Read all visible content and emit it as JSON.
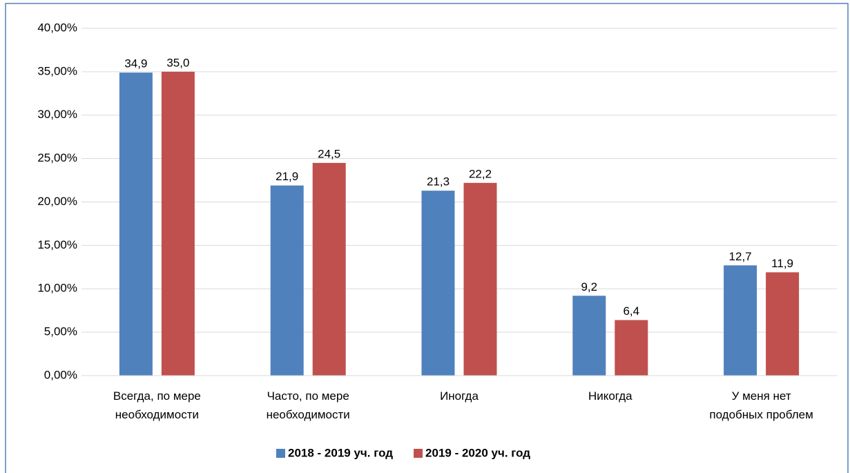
{
  "chart_data": {
    "type": "bar",
    "categories": [
      "Всегда, по мере\nнеобходимости",
      "Часто, по мере\nнеобходимости",
      "Иногда",
      "Никогда",
      "У меня нет\nподобных проблем"
    ],
    "series": [
      {
        "name": "2018 - 2019 уч. год",
        "color": "#4f81bd",
        "values": [
          34.9,
          21.9,
          21.3,
          9.2,
          12.7
        ],
        "value_labels": [
          "34,9",
          "21,9",
          "21,3",
          "9,2",
          "12,7"
        ]
      },
      {
        "name": "2019 - 2020 уч. год",
        "color": "#c0504d",
        "values": [
          35.0,
          24.5,
          22.2,
          6.4,
          11.9
        ],
        "value_labels": [
          "35,0",
          "24,5",
          "22,2",
          "6,4",
          "11,9"
        ]
      }
    ],
    "ylim": [
      0,
      40
    ],
    "yticks": [
      {
        "value": 0,
        "label": "0,00%"
      },
      {
        "value": 5,
        "label": "5,00%"
      },
      {
        "value": 10,
        "label": "10,00%"
      },
      {
        "value": 15,
        "label": "15,00%"
      },
      {
        "value": 20,
        "label": "20,00%"
      },
      {
        "value": 25,
        "label": "25,00%"
      },
      {
        "value": 30,
        "label": "30,00%"
      },
      {
        "value": 35,
        "label": "35,00%"
      },
      {
        "value": 40,
        "label": "40,00%"
      }
    ],
    "grid": true,
    "legend": "bottom"
  }
}
